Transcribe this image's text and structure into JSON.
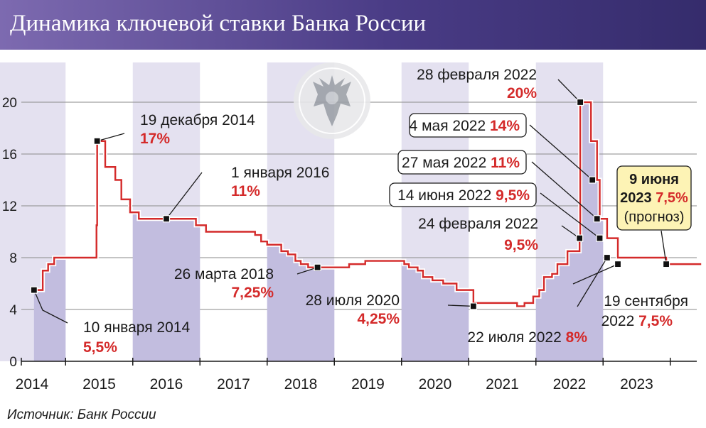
{
  "title": "Динамика ключевой ставки Банка России",
  "source": "Источник: Банк России",
  "colors": {
    "line": "#d42a2a",
    "fill": "#c2bddf",
    "band_light": "#e4e1f0",
    "band_dark": "#c2bddf",
    "header": "#4a3c86",
    "forecast_box": "#fdf3b5"
  },
  "icon": "bank-of-russia-eagle-emblem",
  "chart_data": {
    "type": "line",
    "step": true,
    "title": "Динамика ключевой ставки Банка России",
    "xlabel": "",
    "ylabel": "",
    "xlim": [
      2013.55,
      2023.6
    ],
    "ylim": [
      0,
      21
    ],
    "y_ticks": [
      0,
      4,
      8,
      12,
      16,
      20
    ],
    "x_ticks": [
      2014,
      2015,
      2016,
      2017,
      2018,
      2019,
      2020,
      2021,
      2022,
      2023
    ],
    "grid": true,
    "series": [
      {
        "x": [
          2014.03,
          2014.16,
          2014.24,
          2014.33,
          2014.57,
          2014.96,
          2014.97,
          2015.09,
          2015.24,
          2015.33,
          2015.46,
          2015.59,
          2015.66,
          2016.44,
          2016.59,
          2017.32,
          2017.41,
          2017.5,
          2017.71,
          2017.81,
          2017.92,
          2018.0,
          2018.11,
          2018.25,
          2018.72,
          2018.96,
          2019.46,
          2019.54,
          2019.61,
          2019.74,
          2019.82,
          2019.96,
          2020.12,
          2020.32,
          2020.57,
          2021.22,
          2021.33,
          2021.46,
          2021.55,
          2021.62,
          2021.74,
          2021.82,
          2021.97,
          2022.15,
          2022.16,
          2022.32,
          2022.41,
          2022.45,
          2022.56,
          2022.72,
          2023.44,
          2023.96
        ],
        "y": [
          5.5,
          7.0,
          7.5,
          8.0,
          8.0,
          10.5,
          17.0,
          15.0,
          14.0,
          12.5,
          11.5,
          11.0,
          11.0,
          10.5,
          10.0,
          9.75,
          9.25,
          9.0,
          8.5,
          8.25,
          7.75,
          7.5,
          7.25,
          7.25,
          7.5,
          7.75,
          7.75,
          7.5,
          7.25,
          7.0,
          6.5,
          6.25,
          6.0,
          5.5,
          4.5,
          4.25,
          4.5,
          5.0,
          5.5,
          6.5,
          6.75,
          7.5,
          8.5,
          9.5,
          20.0,
          17.0,
          14.0,
          11.0,
          9.5,
          8.0,
          7.5,
          7.5
        ]
      }
    ],
    "shaded_years": [
      {
        "year": 2014,
        "label": "2014"
      },
      {
        "year": 2016,
        "label": "2016"
      },
      {
        "year": 2018,
        "label": "2018"
      },
      {
        "year": 2020,
        "label": "2020"
      },
      {
        "year": 2022,
        "label": "2022"
      }
    ],
    "annotations": [
      {
        "x": 2014.03,
        "y": 5.5,
        "date": "10 января 2014",
        "value": "5,5%"
      },
      {
        "x": 2014.97,
        "y": 17.0,
        "date": "19 декабря 2014",
        "value": "17%"
      },
      {
        "x": 2016.0,
        "y": 11.0,
        "date": "1 января 2016",
        "value": "11%"
      },
      {
        "x": 2018.25,
        "y": 7.25,
        "date": "26 марта 2018",
        "value": "7,25%"
      },
      {
        "x": 2020.57,
        "y": 4.25,
        "date": "28 июля 2020",
        "value": "4,25%"
      },
      {
        "x": 2022.15,
        "y": 9.5,
        "date": "24 февраля 2022",
        "value": "9,5%"
      },
      {
        "x": 2022.16,
        "y": 20.0,
        "date": "28 февраля 2022",
        "value": "20%"
      },
      {
        "x": 2022.34,
        "y": 14.0,
        "date": "4 мая 2022",
        "value": "14%",
        "boxed": true
      },
      {
        "x": 2022.41,
        "y": 11.0,
        "date": "27 мая 2022",
        "value": "11%",
        "boxed": true
      },
      {
        "x": 2022.45,
        "y": 9.5,
        "date": "14 июня 2022",
        "value": "9,5%",
        "boxed": true
      },
      {
        "x": 2022.56,
        "y": 8.0,
        "date": "22 июля 2022",
        "value": "8%"
      },
      {
        "x": 2022.72,
        "y": 7.5,
        "date": "19 сентября",
        "line2": "2022",
        "value": "7,5%"
      },
      {
        "x": 2023.44,
        "y": 7.5,
        "date": "9 июня",
        "line2": "2023",
        "value": "7,5%",
        "note": "(прогноз)",
        "forecast": true
      }
    ]
  }
}
